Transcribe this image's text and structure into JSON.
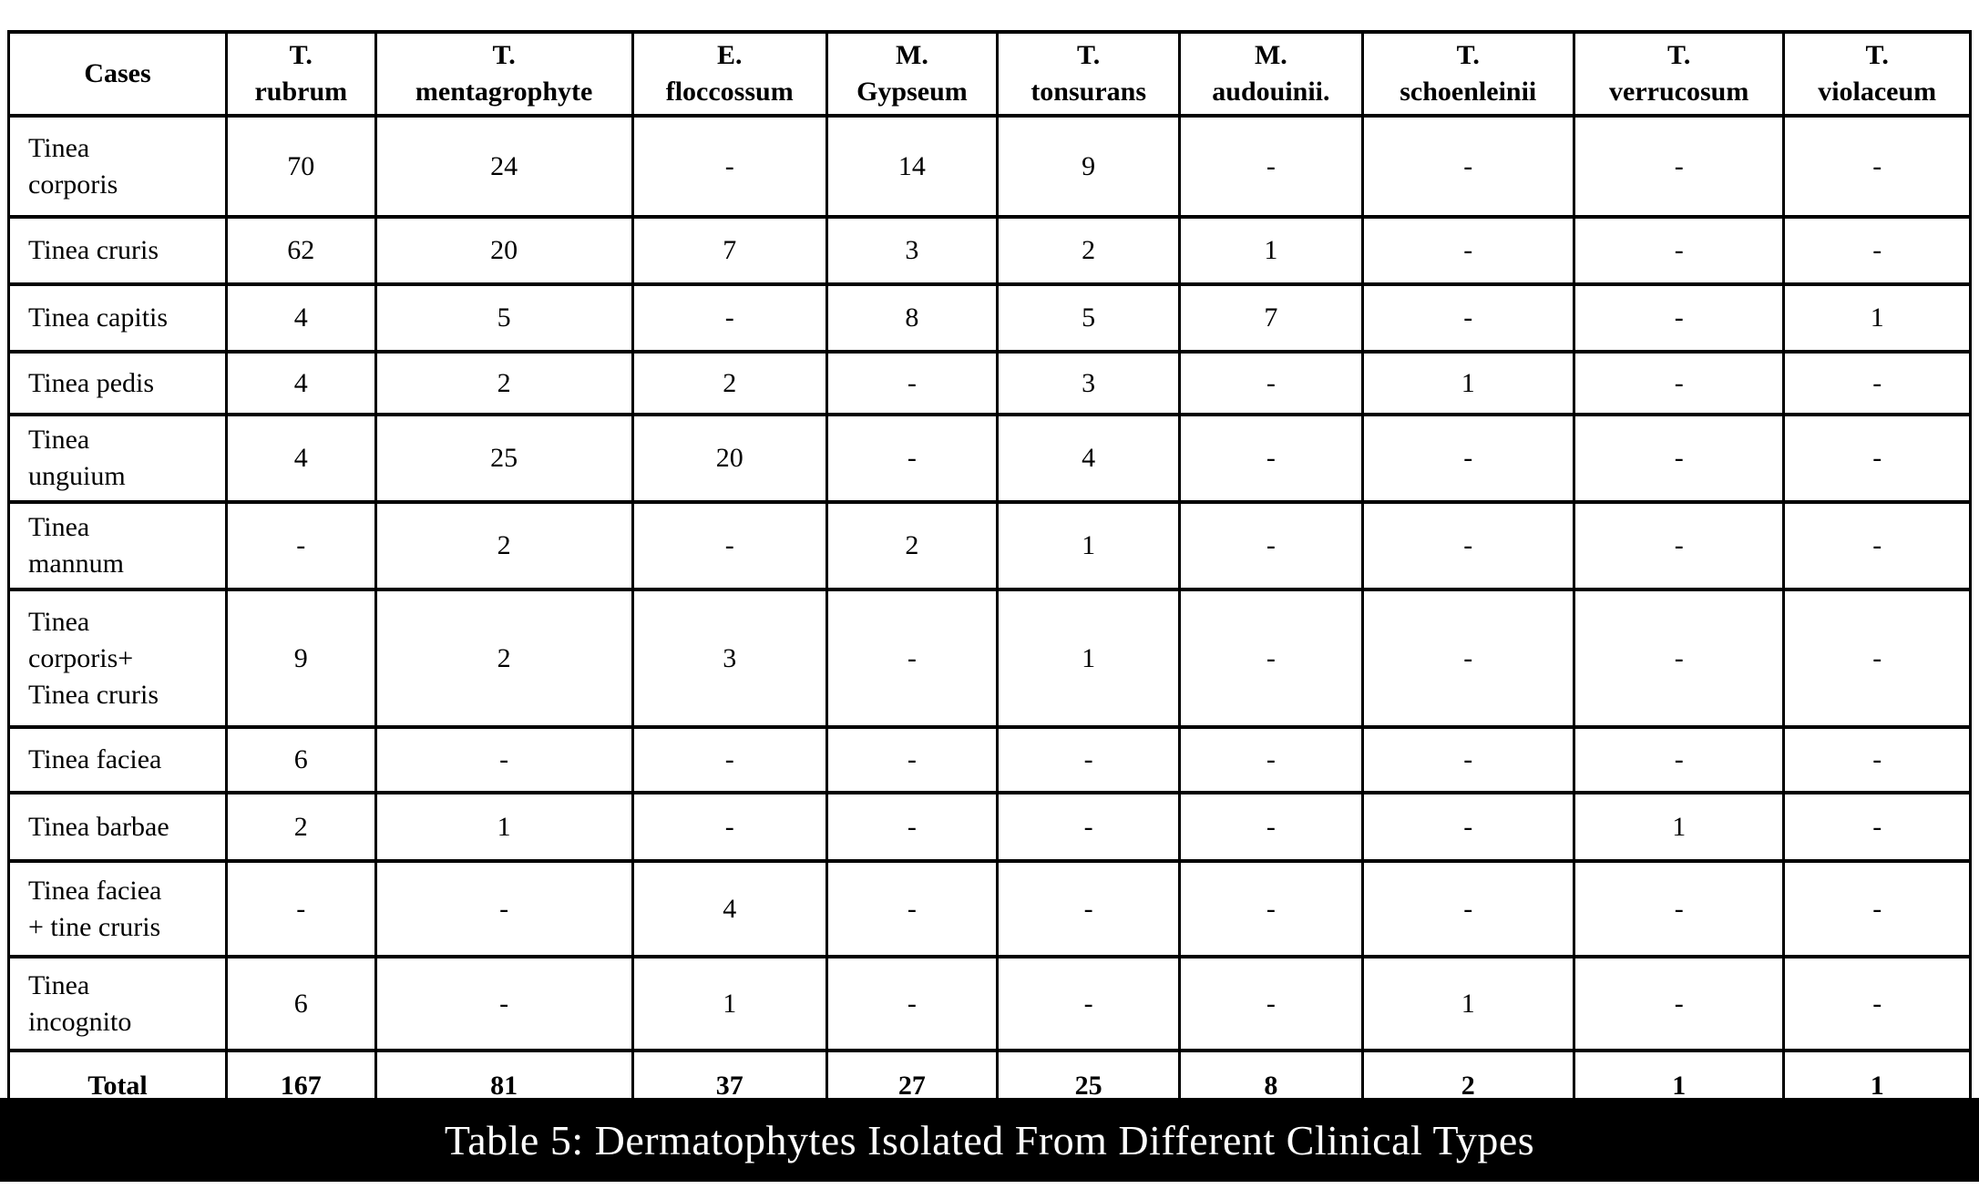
{
  "caption": "Table 5: Dermatophytes Isolated From Different Clinical Types",
  "table": {
    "columns": [
      "Cases",
      "T.\nrubrum",
      "T.\nmentagrophyte",
      "E.\nfloccossum",
      "M.\nGypseum",
      "T.\ntonsurans",
      "M.\naudouinii.",
      "T.\nschoenleinii",
      "T.\nverrucosum",
      "T.\nviolaceum"
    ],
    "rows": [
      {
        "label": "Tinea\ncorporis",
        "values": [
          "70",
          "24",
          "-",
          "14",
          "9",
          "-",
          "-",
          "-",
          "-"
        ]
      },
      {
        "label": "Tinea cruris",
        "values": [
          "62",
          "20",
          "7",
          "3",
          "2",
          "1",
          "-",
          "-",
          "-"
        ]
      },
      {
        "label": "Tinea capitis",
        "values": [
          "4",
          "5",
          "-",
          "8",
          "5",
          "7",
          "-",
          "-",
          "1"
        ]
      },
      {
        "label": "Tinea pedis",
        "values": [
          "4",
          "2",
          "2",
          "-",
          "3",
          "-",
          "1",
          "-",
          "-"
        ]
      },
      {
        "label": "Tinea\nunguium",
        "values": [
          "4",
          "25",
          "20",
          "-",
          "4",
          "-",
          "-",
          "-",
          "-"
        ]
      },
      {
        "label": "Tinea\nmannum",
        "values": [
          "-",
          "2",
          "-",
          "2",
          "1",
          "-",
          "-",
          "-",
          "-"
        ]
      },
      {
        "label": "Tinea\ncorporis+\nTinea cruris",
        "values": [
          "9",
          "2",
          "3",
          "-",
          "1",
          "-",
          "-",
          "-",
          "-"
        ]
      },
      {
        "label": "Tinea faciea",
        "values": [
          "6",
          "-",
          "-",
          "-",
          "-",
          "-",
          "-",
          "-",
          "-"
        ]
      },
      {
        "label": "Tinea barbae",
        "values": [
          "2",
          "1",
          "-",
          "-",
          "-",
          "-",
          "-",
          "1",
          "-"
        ]
      },
      {
        "label": "Tinea faciea\n+ tine cruris",
        "values": [
          "-",
          "-",
          "4",
          "-",
          "-",
          "-",
          "-",
          "-",
          "-"
        ]
      },
      {
        "label": "Tinea\nincognito",
        "values": [
          "6",
          "-",
          "1",
          "-",
          "-",
          "-",
          "1",
          "-",
          "-"
        ]
      }
    ],
    "total_row": {
      "label": "Total",
      "values": [
        "167",
        "81",
        "37",
        "27",
        "25",
        "8",
        "2",
        "1",
        "1"
      ]
    }
  },
  "colors": {
    "page_background": "#ffffff",
    "table_border": "#000000",
    "table_text": "#000000",
    "caption_background": "#000000",
    "caption_text": "#ffffff"
  }
}
